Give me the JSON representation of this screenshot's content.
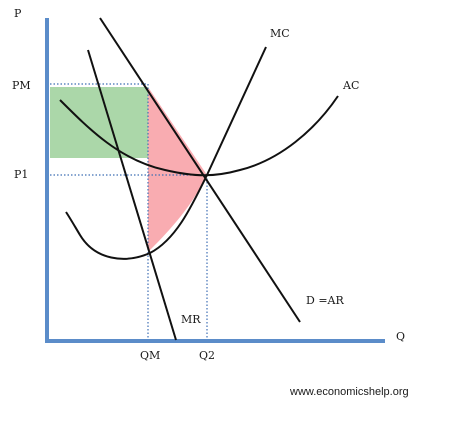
{
  "diagram": {
    "axis_labels": {
      "y": "P",
      "x": "Q"
    },
    "price_ticks": {
      "pm": "PM",
      "p1": "P1"
    },
    "quantity_ticks": {
      "qm": "QM",
      "q2": "Q2"
    },
    "curves": {
      "mc": "MC",
      "ac": "AC",
      "demand": "D =AR",
      "mr": "MR"
    },
    "colors": {
      "axis": "#5b8cc9",
      "curve": "#111111",
      "dotted_guide": "#3f6fb5",
      "profit_area": "#9cd09a",
      "deadweight_area": "#f8a3a8"
    }
  },
  "footer": {
    "source": "www.economicshelp.org"
  }
}
